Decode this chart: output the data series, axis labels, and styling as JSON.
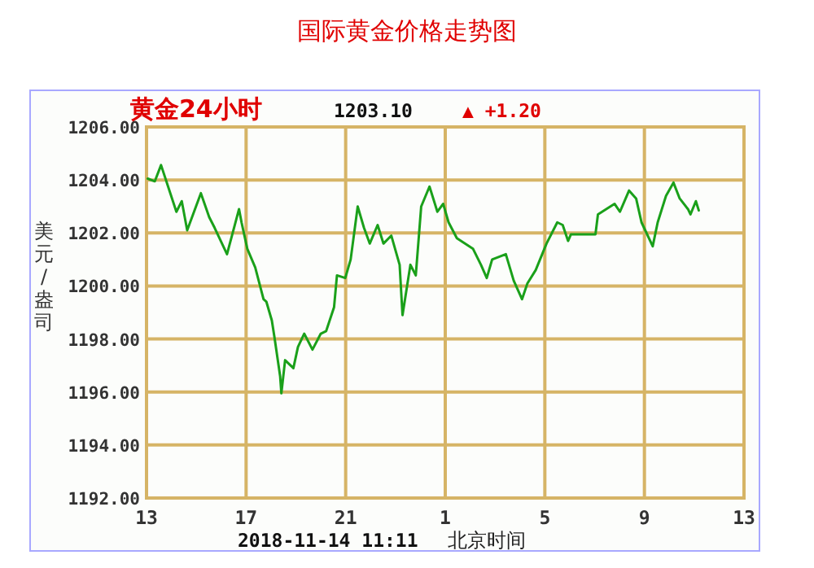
{
  "chart_data": {
    "type": "line",
    "title": "国际黄金价格走势图",
    "ylabel": "美元/盎司",
    "annotations": [
      "黄金24小时",
      "1203.10",
      "▲ +1.20",
      "2018-11-14 11:11",
      "北京时间"
    ],
    "xlim": [
      "2018-11-13T13:00",
      "2018-11-14T13:00"
    ],
    "xticks": [
      {
        "value": "2018-11-13T13:00",
        "label": "13"
      },
      {
        "value": "2018-11-13T17:00",
        "label": "17"
      },
      {
        "value": "2018-11-13T21:00",
        "label": "21"
      },
      {
        "value": "2018-11-14T01:00",
        "label": "1"
      },
      {
        "value": "2018-11-14T05:00",
        "label": "5"
      },
      {
        "value": "2018-11-14T09:00",
        "label": "9"
      },
      {
        "value": "2018-11-14T13:00",
        "label": "13"
      }
    ],
    "ylim": [
      1192,
      1206
    ],
    "yticks": [
      {
        "value": 1192,
        "label": "1192.00"
      },
      {
        "value": 1194,
        "label": "1194.00"
      },
      {
        "value": 1196,
        "label": "1196.00"
      },
      {
        "value": 1198,
        "label": "1198.00"
      },
      {
        "value": 1200,
        "label": "1200.00"
      },
      {
        "value": 1202,
        "label": "1202.00"
      },
      {
        "value": 1204,
        "label": "1204.00"
      },
      {
        "value": 1206,
        "label": "1206.00"
      }
    ],
    "grid": true,
    "marker": "none",
    "line_style": "solid",
    "series": [
      {
        "color": "#1aa01a",
        "x": [
          "2018-11-13T13:03",
          "2018-11-13T13:20",
          "2018-11-13T13:35",
          "2018-11-13T13:52",
          "2018-11-13T14:12",
          "2018-11-13T14:25",
          "2018-11-13T14:38",
          "2018-11-13T15:11",
          "2018-11-13T15:31",
          "2018-11-13T15:44",
          "2018-11-13T16:14",
          "2018-11-13T16:43",
          "2018-11-13T16:49",
          "2018-11-13T17:03",
          "2018-11-13T17:22",
          "2018-11-13T17:42",
          "2018-11-13T17:49",
          "2018-11-13T18:02",
          "2018-11-13T18:08",
          "2018-11-13T18:22",
          "2018-11-13T18:25",
          "2018-11-13T18:34",
          "2018-11-13T18:54",
          "2018-11-13T19:05",
          "2018-11-13T19:20",
          "2018-11-13T19:40",
          "2018-11-13T20:00",
          "2018-11-13T20:13",
          "2018-11-13T20:32",
          "2018-11-13T20:39",
          "2018-11-13T20:59",
          "2018-11-13T21:12",
          "2018-11-13T21:29",
          "2018-11-13T21:44",
          "2018-11-13T21:58",
          "2018-11-13T22:17",
          "2018-11-13T22:31",
          "2018-11-13T22:50",
          "2018-11-13T23:10",
          "2018-11-13T23:17",
          "2018-11-13T23:23",
          "2018-11-13T23:36",
          "2018-11-13T23:49",
          "2018-11-14T00:02",
          "2018-11-14T00:22",
          "2018-11-14T00:41",
          "2018-11-14T00:55",
          "2018-11-14T01:08",
          "2018-11-14T01:28",
          "2018-11-14T02:07",
          "2018-11-14T02:26",
          "2018-11-14T02:40",
          "2018-11-14T02:53",
          "2018-11-14T03:26",
          "2018-11-14T03:45",
          "2018-11-14T04:05",
          "2018-11-14T04:18",
          "2018-11-14T04:38",
          "2018-11-14T05:04",
          "2018-11-14T05:30",
          "2018-11-14T05:43",
          "2018-11-14T05:56",
          "2018-11-14T06:03",
          "2018-11-14T07:02",
          "2018-11-14T07:08",
          "2018-11-14T07:48",
          "2018-11-14T08:01",
          "2018-11-14T08:23",
          "2018-11-14T08:40",
          "2018-11-14T08:53",
          "2018-11-14T09:20",
          "2018-11-14T09:32",
          "2018-11-14T09:52",
          "2018-11-14T10:10",
          "2018-11-14T10:25",
          "2018-11-14T10:45",
          "2018-11-14T10:51",
          "2018-11-14T11:04",
          "2018-11-14T11:11"
        ],
        "values": [
          1204.05,
          1203.95,
          1204.56,
          1203.75,
          1202.8,
          1203.2,
          1202.1,
          1203.5,
          1202.6,
          1202.2,
          1201.2,
          1202.9,
          1202.4,
          1201.4,
          1200.7,
          1199.5,
          1199.4,
          1198.7,
          1198.1,
          1196.6,
          1195.95,
          1197.2,
          1196.9,
          1197.7,
          1198.2,
          1197.6,
          1198.2,
          1198.3,
          1199.2,
          1200.4,
          1200.3,
          1201.0,
          1203.0,
          1202.2,
          1201.6,
          1202.3,
          1201.6,
          1201.9,
          1200.8,
          1198.9,
          1199.5,
          1200.8,
          1200.4,
          1203.0,
          1203.75,
          1202.8,
          1203.1,
          1202.4,
          1201.8,
          1201.4,
          1200.8,
          1200.3,
          1201.0,
          1201.2,
          1200.2,
          1199.5,
          1200.1,
          1200.6,
          1201.6,
          1202.4,
          1202.3,
          1201.7,
          1201.95,
          1201.95,
          1202.7,
          1203.1,
          1202.8,
          1203.6,
          1203.3,
          1202.4,
          1201.5,
          1202.4,
          1203.4,
          1203.9,
          1203.3,
          1202.9,
          1202.7,
          1203.2,
          1202.85
        ]
      }
    ]
  }
}
